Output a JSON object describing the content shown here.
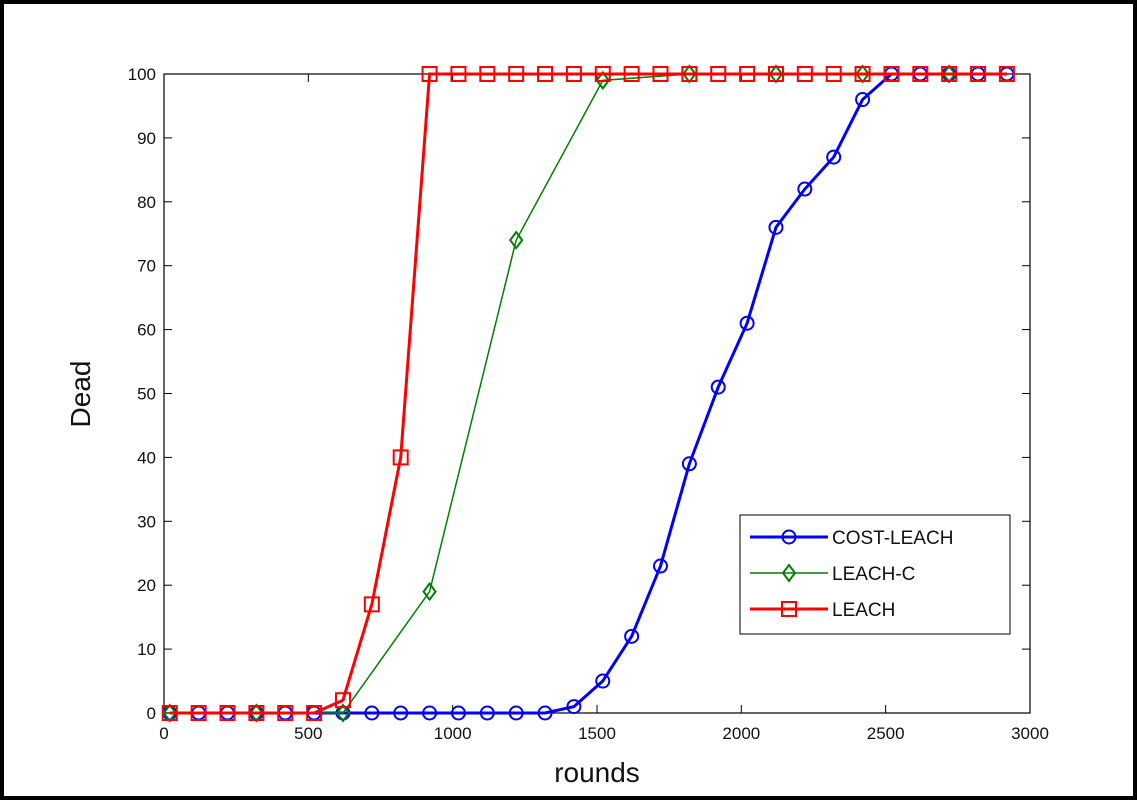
{
  "chart_data": {
    "type": "line",
    "title": "",
    "xlabel": "rounds",
    "ylabel": "Dead",
    "xlim": [
      0,
      3000
    ],
    "ylim": [
      0,
      100
    ],
    "xticks": [
      "0",
      "500",
      "1000",
      "1500",
      "2000",
      "2500",
      "3000"
    ],
    "yticks": [
      "0",
      "10",
      "20",
      "30",
      "40",
      "50",
      "60",
      "70",
      "80",
      "90",
      "100"
    ],
    "grid": false,
    "legend_position": "lower-right",
    "series": [
      {
        "name": "COST-LEACH",
        "color": "#0000ff",
        "marker": "circle",
        "x": [
          20,
          120,
          220,
          320,
          420,
          520,
          620,
          720,
          820,
          920,
          1020,
          1120,
          1220,
          1320,
          1420,
          1520,
          1620,
          1720,
          1820,
          1920,
          2020,
          2120,
          2220,
          2320,
          2420,
          2520,
          2620,
          2720,
          2820,
          2920
        ],
        "y": [
          0,
          0,
          0,
          0,
          0,
          0,
          0,
          0,
          0,
          0,
          0,
          0,
          0,
          0,
          1,
          5,
          12,
          23,
          39,
          51,
          61,
          76,
          82,
          87,
          96,
          100,
          100,
          100,
          100,
          100
        ]
      },
      {
        "name": "LEACH-C",
        "color": "#008000",
        "marker": "diamond",
        "x": [
          20,
          320,
          620,
          920,
          1220,
          1520,
          1820,
          2120,
          2420,
          2720
        ],
        "y": [
          0,
          0,
          0,
          19,
          74,
          99,
          100,
          100,
          100,
          100
        ]
      },
      {
        "name": "LEACH",
        "color": "#ff0000",
        "marker": "square",
        "x": [
          20,
          120,
          220,
          320,
          420,
          520,
          620,
          720,
          820,
          920,
          1020,
          1120,
          1220,
          1320,
          1420,
          1520,
          1620,
          1720,
          1820,
          1920,
          2020,
          2120,
          2220,
          2320,
          2420,
          2520,
          2620,
          2720,
          2820,
          2920
        ],
        "y": [
          0,
          0,
          0,
          0,
          0,
          0,
          2,
          17,
          40,
          100,
          100,
          100,
          100,
          100,
          100,
          100,
          100,
          100,
          100,
          100,
          100,
          100,
          100,
          100,
          100,
          100,
          100,
          100,
          100,
          100
        ]
      }
    ]
  }
}
